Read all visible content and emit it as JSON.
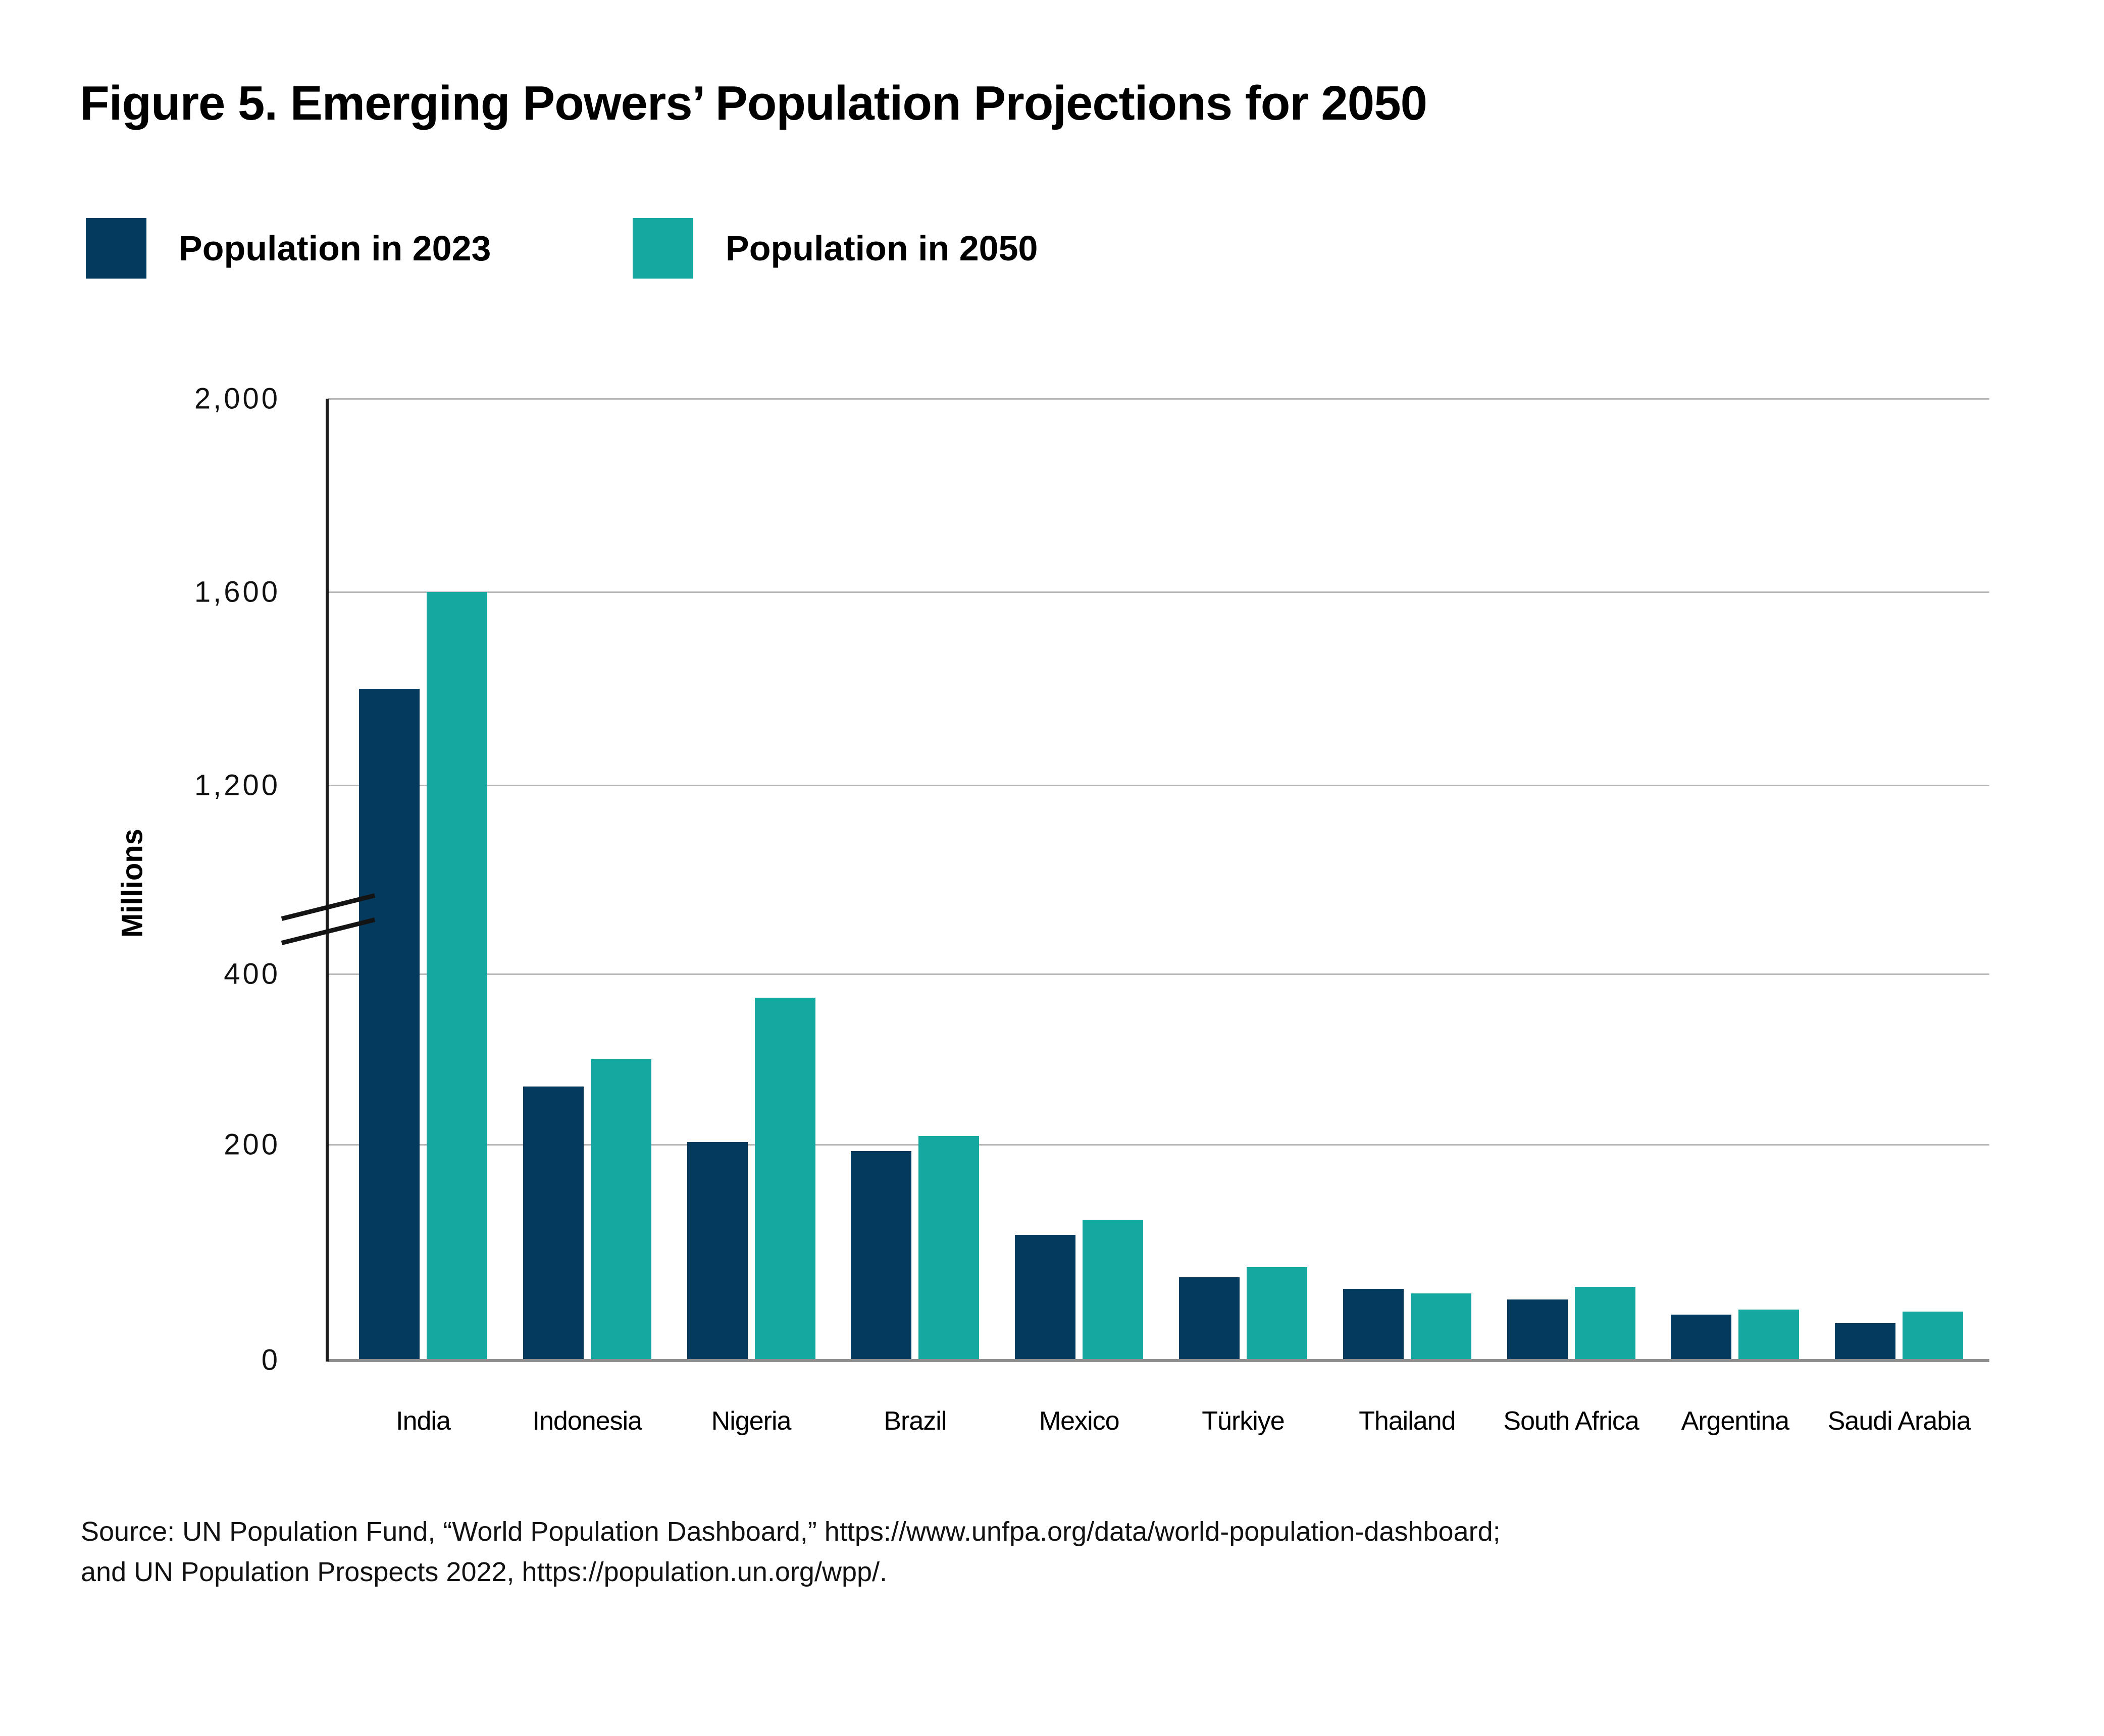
{
  "figure": {
    "title": "Figure 5. Emerging Powers’ Population Projections for 2050",
    "source_line1": "Source: UN Population Fund, “World Population Dashboard,” https://www.unfpa.org/data/world-population-dashboard;",
    "source_line2": "and UN Population Prospects 2022, https://population.un.org/wpp/."
  },
  "legend": {
    "items": [
      {
        "label": "Population in 2023",
        "color": "#053a5f"
      },
      {
        "label": "Population in 2050",
        "color": "#14a8a0"
      }
    ]
  },
  "chart_data": {
    "type": "bar",
    "title": "Figure 5. Emerging Powers’ Population Projections for 2050",
    "ylabel": "Millions",
    "unit": "millions of people",
    "categories": [
      "India",
      "Indonesia",
      "Nigeria",
      "Brazil",
      "Mexico",
      "Türkiye",
      "Thailand",
      "South Africa",
      "Argentina",
      "Saudi Arabia"
    ],
    "series": [
      {
        "name": "Population in 2023",
        "color": "#053a5f",
        "values": [
          1400,
          268,
          203,
          194,
          116,
          77,
          66,
          56,
          42,
          34
        ]
      },
      {
        "name": "Population in 2050",
        "color": "#14a8a0",
        "values": [
          1600,
          300,
          372,
          210,
          130,
          86,
          62,
          68,
          47,
          45
        ]
      }
    ],
    "y_ticks": [
      {
        "label": "2,000",
        "value": 2000
      },
      {
        "label": "1,600",
        "value": 1600
      },
      {
        "label": "1,200",
        "value": 1200
      },
      {
        "label": "400",
        "value": 400
      },
      {
        "label": "200",
        "value": 200
      },
      {
        "label": "0",
        "value": 0
      }
    ],
    "axis_break": {
      "lower_max": 400,
      "upper_min": 1200
    },
    "ylim_lower": [
      0,
      400
    ],
    "ylim_upper": [
      1200,
      2000
    ],
    "grid": true,
    "legend_position": "top-left"
  }
}
